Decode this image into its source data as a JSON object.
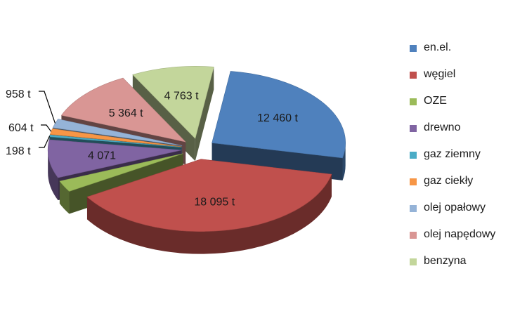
{
  "chart_data": {
    "type": "pie",
    "title": "",
    "legend_position": "right",
    "slices": [
      {
        "name": "en.el.",
        "value": 12460,
        "label": "12 460 t",
        "color": "#4f81bd"
      },
      {
        "name": "węgiel",
        "value": 18095,
        "label": "18 095 t",
        "color": "#c0504d"
      },
      {
        "name": "OZE",
        "value": 1200,
        "label": "",
        "color": "#9bbb59"
      },
      {
        "name": "drewno",
        "value": 4071,
        "label": "4 071",
        "color": "#8064a2"
      },
      {
        "name": "gaz ziemny",
        "value": 198,
        "label": "198 t",
        "color": "#4bacc6"
      },
      {
        "name": "gaz ciekły",
        "value": 604,
        "label": "604 t",
        "color": "#f79646"
      },
      {
        "name": "olej opałowy",
        "value": 958,
        "label": "958 t",
        "color": "#95b3d7"
      },
      {
        "name": "olej napędowy",
        "value": 5364,
        "label": "5 364 t",
        "color": "#d99694"
      },
      {
        "name": "benzyna",
        "value": 4763,
        "label": "4 763 t",
        "color": "#c3d69b"
      }
    ]
  }
}
